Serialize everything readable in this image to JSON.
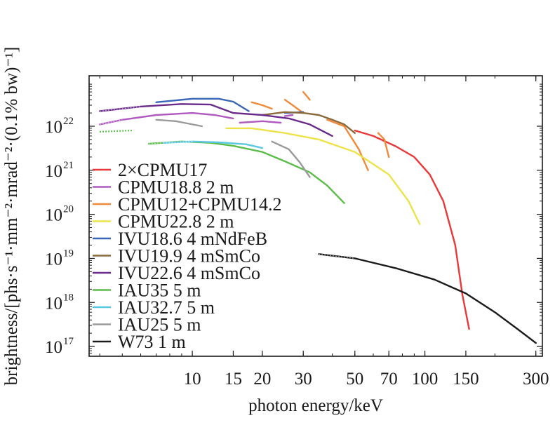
{
  "chart_data": {
    "type": "line",
    "xlabel": "photon energy/keV",
    "ylabel": "brightness/[phs·s⁻¹·mm⁻²·mrad⁻²·(0.1% bw)⁻¹]",
    "x_scale": "log",
    "y_scale": "log",
    "xlim": [
      3.6,
      320
    ],
    "ylim": [
      6e+16,
      1.4e+23
    ],
    "x_ticks": [
      {
        "value": 10,
        "label": "10"
      },
      {
        "value": 15,
        "label": "15"
      },
      {
        "value": 20,
        "label": "20"
      },
      {
        "value": 30,
        "label": "30"
      },
      {
        "value": 50,
        "label": "50"
      },
      {
        "value": 70,
        "label": "70"
      },
      {
        "value": 100,
        "label": "100"
      },
      {
        "value": 150,
        "label": "150"
      },
      {
        "value": 300,
        "label": "300"
      }
    ],
    "y_ticks": [
      {
        "value": 1e+17,
        "base": "10",
        "exp": "17"
      },
      {
        "value": 1e+18,
        "base": "10",
        "exp": "18"
      },
      {
        "value": 1e+19,
        "base": "10",
        "exp": "19"
      },
      {
        "value": 1e+20,
        "base": "10",
        "exp": "20"
      },
      {
        "value": 1e+21,
        "base": "10",
        "exp": "21"
      },
      {
        "value": 1e+22,
        "base": "10",
        "exp": "22"
      }
    ],
    "grid": false,
    "legend_position": "left",
    "series": [
      {
        "name": "2×CPMU17",
        "color": "#e8383a",
        "segments": [
          [
            [
              50,
              8e+21
            ],
            [
              60,
              6e+21
            ],
            [
              75,
              3.5e+21
            ],
            [
              90,
              2e+21
            ],
            [
              105,
              8e+20
            ],
            [
              120,
              2e+20
            ],
            [
              135,
              2e+19
            ],
            [
              145,
              1.5e+18
            ],
            [
              155,
              2.5e+17
            ]
          ]
        ]
      },
      {
        "name": "CPMU18.8 2 m",
        "color": "#b05ac0",
        "segments": [
          [
            [
              4,
              1.1e+22
            ],
            [
              5,
              1.4e+22
            ],
            [
              7,
              1.8e+22
            ],
            [
              10,
              2e+22
            ],
            [
              12.5,
              1.8e+22
            ],
            [
              15,
              1.5e+22
            ]
          ],
          [
            [
              16,
              1.2e+22
            ],
            [
              20,
              1.3e+22
            ],
            [
              24,
              1.2e+22
            ]
          ],
          [
            [
              25,
              1.7e+22
            ],
            [
              27,
              1.8e+22
            ]
          ]
        ]
      },
      {
        "name": "CPMU12+CPMU14.2",
        "color": "#f08a3a",
        "segments": [
          [
            [
              18,
              3.5e+22
            ],
            [
              20,
              3e+22
            ],
            [
              22,
              2.5e+22
            ]
          ],
          [
            [
              25,
              4e+22
            ],
            [
              27,
              3e+22
            ],
            [
              30,
              2e+22
            ]
          ],
          [
            [
              30,
              6e+22
            ],
            [
              32,
              4e+22
            ]
          ],
          [
            [
              38,
              1.4e+22
            ],
            [
              45,
              1e+22
            ],
            [
              52,
              3e+21
            ],
            [
              57,
              1e+21
            ]
          ],
          [
            [
              63,
              7e+21
            ],
            [
              67,
              5e+21
            ],
            [
              70,
              2e+21
            ]
          ]
        ]
      },
      {
        "name": "CPMU22.8 2 m",
        "color": "#ece34a",
        "segments": [
          [
            [
              14,
              9e+21
            ],
            [
              18,
              9e+21
            ],
            [
              25,
              7e+21
            ],
            [
              35,
              5e+21
            ],
            [
              50,
              2.6e+21
            ],
            [
              70,
              8e+20
            ],
            [
              85,
              2e+20
            ],
            [
              95,
              6e+19
            ]
          ]
        ]
      },
      {
        "name": "IVU18.6 4 mNdFeB",
        "color": "#3a66b8",
        "segments": [
          [
            [
              7,
              3.5e+22
            ],
            [
              10,
              4.2e+22
            ],
            [
              13,
              4.2e+22
            ],
            [
              15,
              3.6e+22
            ],
            [
              17.5,
              2.2e+22
            ]
          ],
          [
            [
              25,
              2e+22
            ],
            [
              30,
              2.1e+22
            ]
          ]
        ]
      },
      {
        "name": "IVU19.9 4 mSmCo",
        "color": "#8a6a3a",
        "segments": [
          [
            [
              20,
              1.8e+22
            ],
            [
              25,
              2.1e+22
            ],
            [
              30,
              2e+22
            ],
            [
              35,
              1.8e+22
            ],
            [
              40,
              1.4e+22
            ],
            [
              45,
              1.1e+22
            ],
            [
              50,
              7e+21
            ]
          ]
        ]
      },
      {
        "name": "IVU22.6 4 mSmCo",
        "color": "#6a2a8a",
        "segments": [
          [
            [
              4,
              2.2e+22
            ],
            [
              6,
              2.8e+22
            ],
            [
              9,
              3.2e+22
            ],
            [
              12,
              3.1e+22
            ],
            [
              15,
              2e+22
            ],
            [
              20,
              1.8e+22
            ],
            [
              26,
              1.5e+22
            ],
            [
              32,
              1.1e+22
            ],
            [
              40,
              6e+21
            ]
          ]
        ]
      },
      {
        "name": "IAU35 5 m",
        "color": "#5cbc4a",
        "segments": [
          [
            [
              6.5,
              4e+21
            ],
            [
              9,
              4.5e+21
            ],
            [
              12,
              4.2e+21
            ],
            [
              15,
              3.6e+21
            ],
            [
              20,
              2.6e+21
            ],
            [
              25,
              1.6e+21
            ],
            [
              32,
              9e+20
            ],
            [
              38,
              4.5e+20
            ],
            [
              45,
              1.8e+20
            ]
          ]
        ]
      },
      {
        "name": "IAU32.7 5 m",
        "color": "#5cc8e0",
        "segments": [
          [
            [
              7.5,
              4.2e+21
            ],
            [
              10,
              4.5e+21
            ],
            [
              13,
              4.3e+21
            ],
            [
              17,
              3.9e+21
            ],
            [
              20,
              3.2e+21
            ]
          ]
        ]
      },
      {
        "name": "IAU25 5 m",
        "color": "#9a9a9a",
        "segments": [
          [
            [
              7,
              1.4e+22
            ],
            [
              8.5,
              1.3e+22
            ],
            [
              11,
              1e+22
            ]
          ],
          [
            [
              22,
              4.5e+21
            ],
            [
              26,
              3e+21
            ],
            [
              29,
              1.5e+21
            ],
            [
              32,
              7e+20
            ]
          ]
        ]
      },
      {
        "name": "W73 1 m",
        "color": "#1a1a1a",
        "segments": [
          [
            [
              35,
              1.25e+19
            ],
            [
              50,
              1e+19
            ],
            [
              75,
              6e+18
            ],
            [
              110,
              3.3e+18
            ],
            [
              150,
              1.6e+18
            ],
            [
              200,
              6e+17
            ],
            [
              250,
              2.5e+17
            ],
            [
              300,
              1.2e+17
            ]
          ]
        ]
      }
    ],
    "dotted_start": {
      "CPMU18.8 2 m": true,
      "IVU22.6 4 mSmCo": true,
      "IAU35 5 m": true,
      "IAU32.7 5 m": true,
      "W73 1 m": true
    },
    "green_dotted_lead": [
      [
        4,
        7.5e+21
      ],
      [
        5.5,
        8e+21
      ]
    ]
  }
}
